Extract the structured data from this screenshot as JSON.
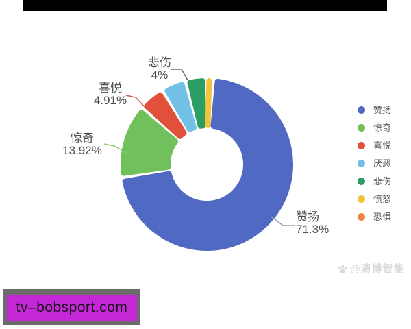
{
  "chart_data": {
    "type": "pie",
    "subtype": "donut",
    "title": "",
    "categories": [
      "赞扬",
      "惊奇",
      "喜悦",
      "厌恶",
      "悲伤",
      "愤怒",
      "恐惧"
    ],
    "values": [
      71.3,
      13.92,
      4.91,
      4.6,
      4.0,
      0.9,
      0.37
    ],
    "shown_data_labels": [
      "赞扬 71.3%",
      "惊奇 13.92%",
      "喜悦 4.91%",
      "悲伤 4%"
    ],
    "unlabeled_values_estimated": [
      "厌恶",
      "愤怒",
      "恐惧"
    ],
    "colors": [
      "#5069c3",
      "#70c05c",
      "#e0503a",
      "#72c0e6",
      "#2d9e63",
      "#f3c33e",
      "#ee8444"
    ],
    "start_angle_deg": 4.5,
    "legend_position": "right",
    "grid": false
  },
  "callouts": [
    {
      "name": "悲伤",
      "value": "4%",
      "line_color": "#5a6a62"
    },
    {
      "name": "喜悦",
      "value": "4.91%",
      "line_color": "#cf5a47"
    },
    {
      "name": "惊奇",
      "value": "13.92%",
      "line_color": "#8fc573"
    },
    {
      "name": "赞扬",
      "value": "71.3%",
      "line_color": "#9aa0a6"
    }
  ],
  "legend": {
    "items": [
      {
        "label": "赞扬",
        "color": "#5069c3"
      },
      {
        "label": "惊奇",
        "color": "#70c05c"
      },
      {
        "label": "喜悦",
        "color": "#e0503a"
      },
      {
        "label": "厌恶",
        "color": "#72c0e6"
      },
      {
        "label": "悲伤",
        "color": "#2d9e63"
      },
      {
        "label": "愤怒",
        "color": "#f3c33e"
      },
      {
        "label": "恐惧",
        "color": "#ee8444"
      }
    ]
  },
  "watermark": {
    "text": "@清博智能",
    "color": "#d9d9d9"
  },
  "banner": {
    "text": "tv–bobsport.com",
    "bg": "#c428d6",
    "frame": "#6b6b6b",
    "text_color": "#141414"
  },
  "decorations": {
    "top_bar_color": "#000000"
  }
}
